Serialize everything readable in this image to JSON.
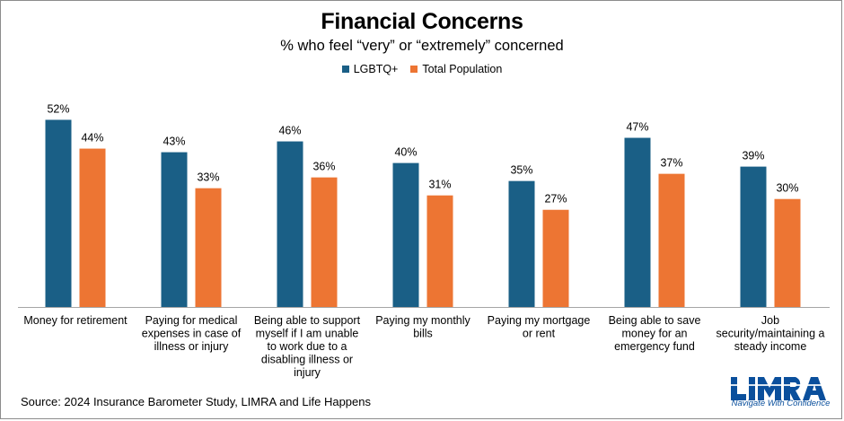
{
  "chart_data": {
    "type": "bar",
    "title": "Financial Concerns",
    "subtitle": "% who feel “very” or “extremely” concerned",
    "categories": [
      "Money for retirement",
      "Paying for medical expenses in case of illness or injury",
      "Being able to support myself if I am unable to work due to a disabling illness or injury",
      "Paying my monthly bills",
      "Paying my mortgage or rent",
      "Being able to save money for an emergency fund",
      "Job security/maintaining a steady income"
    ],
    "category_lines": [
      [
        "Money for retirement"
      ],
      [
        "Paying for medical",
        "expenses in case of",
        "illness or injury"
      ],
      [
        "Being able to support",
        "myself if I am unable",
        "to work due to a",
        "disabling illness or",
        "injury"
      ],
      [
        "Paying my monthly",
        "bills"
      ],
      [
        "Paying my mortgage",
        "or rent"
      ],
      [
        "Being able to save",
        "money for an",
        "emergency fund"
      ],
      [
        "Job",
        "security/maintaining a",
        "steady income"
      ]
    ],
    "series": [
      {
        "name": "LGBTQ+",
        "color": "#1a5f86",
        "values": [
          52,
          43,
          46,
          40,
          35,
          47,
          39
        ],
        "labels": [
          "52%",
          "43%",
          "46%",
          "40%",
          "35%",
          "47%",
          "39%"
        ]
      },
      {
        "name": "Total Population",
        "color": "#ed7533",
        "values": [
          44,
          33,
          36,
          31,
          27,
          37,
          30
        ],
        "labels": [
          "44%",
          "33%",
          "36%",
          "31%",
          "27%",
          "37%",
          "30%"
        ]
      }
    ],
    "ylim": [
      0,
      60
    ],
    "grid": false,
    "legend_position": "top-center",
    "xlabel": "",
    "ylabel": ""
  },
  "footer": {
    "source": "Source: 2024 Insurance Barometer Study, LIMRA and Life Happens"
  },
  "logo": {
    "wordmark": "LIMRA",
    "tagline": "Navigate With Confidence",
    "color": "#0a4f9c"
  }
}
